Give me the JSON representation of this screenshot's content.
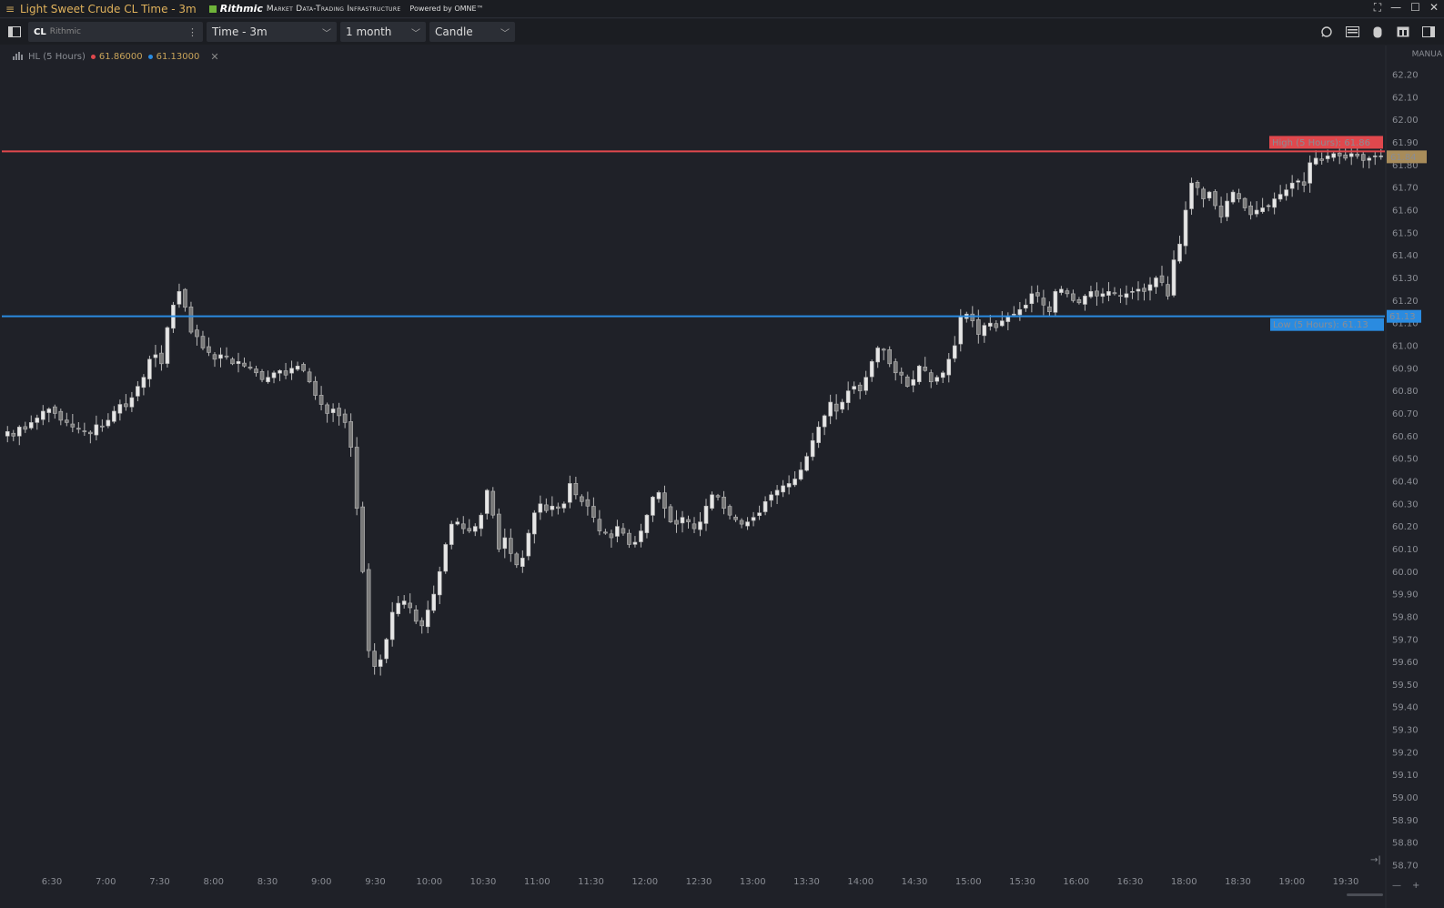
{
  "titlebar": {
    "title": "Light Sweet Crude CL Time - 3m",
    "brand": "Rithmic",
    "tagline": "Market Data-Trading Infrastructure",
    "powered": "Powered by OMNE™"
  },
  "toolbar": {
    "symbol": "CL",
    "feed": "Rithmic",
    "timeframe": "Time - 3m",
    "range": "1 month",
    "chart_type": "Candle"
  },
  "legend": {
    "name": "HL (5 Hours)",
    "high_value": "61.86000",
    "low_value": "61.13000",
    "high_color": "#e0484d",
    "low_color": "#2a8be0"
  },
  "scale_mode": "MANUA",
  "chart_data": {
    "type": "candlestick",
    "symbol": "CL",
    "interval": "3m",
    "y_ticks": [
      62.2,
      62.1,
      62.0,
      61.9,
      61.8,
      61.7,
      61.6,
      61.5,
      61.4,
      61.3,
      61.2,
      61.1,
      61.0,
      60.9,
      60.8,
      60.7,
      60.6,
      60.5,
      60.4,
      60.3,
      60.2,
      60.1,
      60.0,
      59.9,
      59.8,
      59.7,
      59.6,
      59.5,
      59.4,
      59.3,
      59.2,
      59.1,
      59.0,
      58.9,
      58.8,
      58.7
    ],
    "x_ticks": [
      "6:30",
      "7:00",
      "7:30",
      "8:00",
      "8:30",
      "9:00",
      "9:30",
      "10:00",
      "10:30",
      "11:00",
      "11:30",
      "12:00",
      "12:30",
      "13:00",
      "13:30",
      "14:00",
      "14:30",
      "15:00",
      "15:30",
      "16:00",
      "16:30",
      "18:00",
      "18:30",
      "19:00",
      "19:30"
    ],
    "ylim": [
      58.67,
      62.26
    ],
    "last_price": "61.84",
    "high_line": {
      "label": "High (5 Hours): 61.86",
      "value": 61.86,
      "tag": "",
      "color": "#e0484d"
    },
    "low_line": {
      "label": "Low (5 Hours): 61.13",
      "value": 61.13,
      "tag": "61.13",
      "color": "#2a8be0"
    },
    "last_tag_color": "#a88c5a",
    "candle_color": "#b8b8b8",
    "closes": [
      60.62,
      60.6,
      60.64,
      60.63,
      60.66,
      60.68,
      60.71,
      60.72,
      60.7,
      60.67,
      60.66,
      60.64,
      60.63,
      60.62,
      60.61,
      60.65,
      60.64,
      60.67,
      60.71,
      60.74,
      60.73,
      60.77,
      60.82,
      60.86,
      60.94,
      60.96,
      60.92,
      61.08,
      61.18,
      61.24,
      61.17,
      61.06,
      61.04,
      60.99,
      60.97,
      60.94,
      60.96,
      60.95,
      60.92,
      60.93,
      60.91,
      60.9,
      60.88,
      60.85,
      60.86,
      60.88,
      60.89,
      60.87,
      60.9,
      60.91,
      60.89,
      60.84,
      60.78,
      60.74,
      60.7,
      60.72,
      60.69,
      60.66,
      60.55,
      60.28,
      60.0,
      59.65,
      59.58,
      59.61,
      59.7,
      59.82,
      59.86,
      59.87,
      59.84,
      59.78,
      59.76,
      59.83,
      59.9,
      60.0,
      60.12,
      60.21,
      60.22,
      60.19,
      60.18,
      60.2,
      60.25,
      60.36,
      60.25,
      60.1,
      60.15,
      60.08,
      60.03,
      60.06,
      60.17,
      60.26,
      60.3,
      60.27,
      60.29,
      60.28,
      60.3,
      60.39,
      60.34,
      60.31,
      60.29,
      60.24,
      60.18,
      60.17,
      60.15,
      60.2,
      60.17,
      60.12,
      60.13,
      60.18,
      60.25,
      60.33,
      60.35,
      60.28,
      60.22,
      60.21,
      60.24,
      60.22,
      60.19,
      60.22,
      60.29,
      60.34,
      60.33,
      60.28,
      60.25,
      60.23,
      60.21,
      60.22,
      60.24,
      60.26,
      60.31,
      60.34,
      60.36,
      60.38,
      60.39,
      60.41,
      60.45,
      60.51,
      60.58,
      60.64,
      60.69,
      60.75,
      60.71,
      60.75,
      60.8,
      60.82,
      60.8,
      60.86,
      60.93,
      60.99,
      60.98,
      60.92,
      60.88,
      60.87,
      60.82,
      60.85,
      60.91,
      60.89,
      60.84,
      60.86,
      60.88,
      60.94,
      61.0,
      61.13,
      61.14,
      61.11,
      61.05,
      61.09,
      61.1,
      61.08,
      61.11,
      61.13,
      61.14,
      61.16,
      61.18,
      61.23,
      61.22,
      61.18,
      61.15,
      61.24,
      61.25,
      61.23,
      61.2,
      61.19,
      61.22,
      61.24,
      61.22,
      61.23,
      61.24,
      61.23,
      61.22,
      61.23,
      61.24,
      61.25,
      61.24,
      61.27,
      61.3,
      61.28,
      61.22,
      61.38,
      61.45,
      61.6,
      61.72,
      61.7,
      61.65,
      61.68,
      61.62,
      61.57,
      61.64,
      61.68,
      61.65,
      61.61,
      61.58,
      61.6,
      61.61,
      61.62,
      61.65,
      61.67,
      61.69,
      61.72,
      61.73,
      61.71,
      61.81,
      61.83,
      61.82,
      61.84,
      61.85,
      61.84,
      61.83,
      61.85,
      61.84,
      61.82,
      61.83,
      61.84,
      61.84
    ]
  }
}
